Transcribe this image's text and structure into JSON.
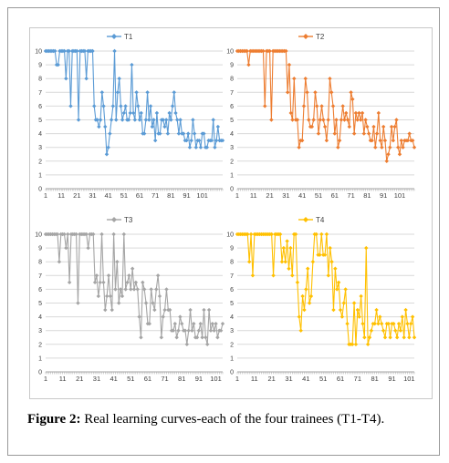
{
  "caption": {
    "label": "Figure 2:",
    "text": "Real learning curves-each of the four trainees (T1-T4)."
  },
  "chart_data": [
    {
      "type": "line",
      "legend": "T1",
      "legend_position": "top-center",
      "color": "#5b9bd5",
      "ylim": [
        0,
        10
      ],
      "yticks": [
        "0",
        "1",
        "2",
        "3",
        "4",
        "5",
        "6",
        "7",
        "8",
        "9",
        "10"
      ],
      "xticks": [
        "1",
        "11",
        "21",
        "31",
        "41",
        "51",
        "61",
        "71",
        "81",
        "91",
        "101"
      ],
      "grid": true,
      "x_start": 1,
      "values": [
        10,
        10,
        10,
        10,
        10,
        10,
        10,
        9,
        9,
        10,
        10,
        10,
        10,
        8,
        10,
        10,
        6,
        10,
        10,
        10,
        10,
        5,
        10,
        10,
        10,
        10,
        8,
        10,
        10,
        10,
        10,
        6,
        5,
        5,
        4.5,
        5,
        7,
        6,
        4.5,
        2.5,
        3,
        4,
        5,
        6,
        10,
        5,
        7,
        8,
        6,
        5,
        5.5,
        6,
        5,
        5,
        5.5,
        9,
        5.5,
        5,
        7,
        6,
        5,
        5.5,
        4,
        4,
        5,
        7,
        5,
        6,
        4.5,
        5,
        3.5,
        5.5,
        4,
        4,
        5,
        5,
        4.5,
        5,
        4,
        5.5,
        5,
        6,
        7,
        5.5,
        5,
        4,
        5,
        4,
        4,
        3.5,
        3.5,
        4,
        3,
        3.5,
        5,
        4,
        3,
        3.5,
        3.5,
        3,
        4,
        4,
        3,
        3,
        3.5,
        3.5,
        3.5,
        5,
        3,
        3.5,
        4.5,
        3.5,
        3.5,
        3.5
      ]
    },
    {
      "type": "line",
      "legend": "T2",
      "legend_position": "top-center",
      "color": "#ed7d31",
      "ylim": [
        0,
        10
      ],
      "yticks": [
        "0",
        "1",
        "2",
        "3",
        "4",
        "5",
        "6",
        "7",
        "8",
        "9",
        "10"
      ],
      "xticks": [
        "1",
        "11",
        "21",
        "31",
        "41",
        "51",
        "61",
        "71",
        "81",
        "91",
        "101"
      ],
      "grid": true,
      "x_start": 1,
      "values": [
        10,
        10,
        10,
        10,
        10,
        10,
        10,
        9,
        10,
        10,
        10,
        10,
        10,
        10,
        10,
        10,
        10,
        6,
        10,
        10,
        10,
        5,
        10,
        10,
        10,
        10,
        10,
        10,
        10,
        10,
        10,
        7,
        9,
        5.5,
        5,
        8,
        5,
        5,
        3,
        3.5,
        3.5,
        6,
        8,
        7,
        5,
        4.5,
        4.5,
        5,
        7,
        6,
        4,
        5,
        6,
        5,
        4.5,
        3.5,
        5,
        8,
        7,
        6,
        4,
        5,
        3,
        3.5,
        5,
        6,
        5,
        5.5,
        5,
        4.5,
        7,
        6.5,
        4,
        5.5,
        5,
        5.5,
        5,
        5.5,
        4,
        5,
        4.5,
        4,
        3.5,
        3.5,
        4.5,
        3,
        4,
        5.5,
        3.5,
        3,
        4.5,
        3.5,
        2,
        2.5,
        3,
        4.5,
        3.5,
        4.5,
        5,
        3,
        2.5,
        3.5,
        3,
        3.5,
        3.5,
        3.5,
        4,
        3.5,
        3.5,
        3
      ]
    },
    {
      "type": "line",
      "legend": "T3",
      "legend_position": "top-center",
      "color": "#a5a5a5",
      "ylim": [
        0,
        10
      ],
      "yticks": [
        "0",
        "1",
        "2",
        "3",
        "4",
        "5",
        "6",
        "7",
        "8",
        "9",
        "10"
      ],
      "xticks": [
        "1",
        "11",
        "21",
        "31",
        "41",
        "51",
        "61",
        "71",
        "81",
        "91",
        "101"
      ],
      "grid": true,
      "x_start": 1,
      "values": [
        10,
        10,
        10,
        10,
        10,
        10,
        10,
        10,
        8,
        10,
        10,
        10,
        9,
        10,
        6.5,
        10,
        10,
        10,
        10,
        5,
        10,
        10,
        10,
        10,
        10,
        9,
        10,
        10,
        10,
        6.5,
        7,
        5.5,
        6.5,
        10,
        6.5,
        4.5,
        5.5,
        7,
        5.5,
        4.5,
        10,
        6,
        8,
        5,
        6,
        5.5,
        10,
        6,
        6.5,
        7,
        6,
        7.5,
        6,
        6.5,
        6,
        4,
        2.5,
        6.5,
        6,
        5,
        3.5,
        3.5,
        6,
        5,
        4.5,
        6,
        7,
        5.5,
        2.5,
        4,
        4.5,
        6,
        4.5,
        4.5,
        3,
        3,
        3.5,
        2.5,
        3,
        4,
        3.5,
        3,
        3,
        2,
        3,
        4.5,
        3,
        3.5,
        2.5,
        2.5,
        3,
        3.5,
        2.5,
        4.5,
        2.5,
        2,
        4.5,
        3,
        3.5,
        3,
        3.5,
        2.5,
        3,
        3,
        3.5
      ]
    },
    {
      "type": "line",
      "legend": "T4",
      "legend_position": "top-center",
      "color": "#ffc000",
      "ylim": [
        0,
        10
      ],
      "yticks": [
        "0",
        "1",
        "2",
        "3",
        "4",
        "5",
        "6",
        "7",
        "8",
        "9",
        "10"
      ],
      "xticks": [
        "1",
        "11",
        "21",
        "31",
        "41",
        "51",
        "61",
        "71",
        "81",
        "91",
        "101"
      ],
      "grid": true,
      "x_start": 1,
      "values": [
        10,
        10,
        10,
        10,
        10,
        10,
        10,
        8,
        10,
        7,
        10,
        10,
        10,
        10,
        10,
        10,
        10,
        10,
        10,
        10,
        10,
        7,
        10,
        10,
        10,
        10,
        8,
        9,
        8,
        9.5,
        7.5,
        9,
        7,
        10,
        10,
        6.5,
        4,
        3,
        5.5,
        4.5,
        6,
        7.5,
        5,
        5.5,
        8,
        10,
        10,
        8.5,
        8.5,
        10,
        8.5,
        8.5,
        10,
        7,
        9,
        8,
        4.5,
        7.5,
        6,
        6.5,
        4.5,
        4,
        5,
        6,
        3.5,
        2,
        2,
        2,
        5,
        2,
        4.5,
        4,
        5.5,
        3.5,
        2.5,
        9,
        2,
        2.5,
        3,
        3.5,
        3.5,
        4.5,
        3.5,
        4,
        3.5,
        3,
        2.5,
        3.5,
        3.5,
        2.5,
        3.5,
        3.5,
        3,
        2.5,
        3.5,
        3,
        4,
        2.5,
        4.5,
        3.5,
        2.5,
        3.5,
        4,
        2.5
      ]
    }
  ]
}
